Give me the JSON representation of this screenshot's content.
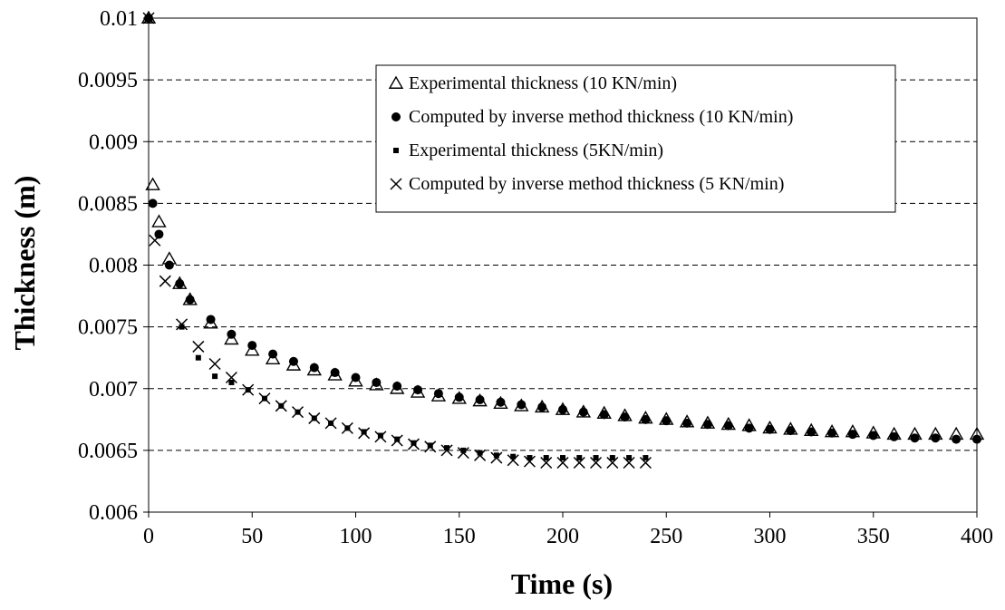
{
  "chart_data": {
    "type": "scatter",
    "xlabel": "Time (s)",
    "ylabel": "Thickness (m)",
    "xlim": [
      0,
      400
    ],
    "ylim": [
      0.006,
      0.01
    ],
    "x_ticks": [
      "0",
      "50",
      "100",
      "150",
      "200",
      "250",
      "300",
      "350",
      "400"
    ],
    "y_ticks": [
      "0.006",
      "0.0065",
      "0.007",
      "0.0075",
      "0.008",
      "0.0085",
      "0.009",
      "0.0095",
      "0.01"
    ],
    "grid": "horizontal dashed",
    "legend_position": "top-right",
    "series": [
      {
        "name": "Experimental thickness (10 KN/min)",
        "marker": "triangle-open",
        "color": "#000000",
        "points": [
          [
            0,
            0.01
          ],
          [
            2,
            0.00865
          ],
          [
            5,
            0.00835
          ],
          [
            10,
            0.00805
          ],
          [
            15,
            0.00785
          ],
          [
            20,
            0.00772
          ],
          [
            30,
            0.00753
          ],
          [
            40,
            0.0074
          ],
          [
            50,
            0.00731
          ],
          [
            60,
            0.00724
          ],
          [
            70,
            0.00719
          ],
          [
            80,
            0.00715
          ],
          [
            90,
            0.00711
          ],
          [
            100,
            0.00706
          ],
          [
            110,
            0.00703
          ],
          [
            120,
            0.007
          ],
          [
            130,
            0.00697
          ],
          [
            140,
            0.00694
          ],
          [
            150,
            0.00692
          ],
          [
            160,
            0.0069
          ],
          [
            170,
            0.00688
          ],
          [
            180,
            0.00686
          ],
          [
            190,
            0.00685
          ],
          [
            200,
            0.00683
          ],
          [
            210,
            0.00681
          ],
          [
            220,
            0.0068
          ],
          [
            230,
            0.00678
          ],
          [
            240,
            0.00676
          ],
          [
            250,
            0.00675
          ],
          [
            260,
            0.00673
          ],
          [
            270,
            0.00672
          ],
          [
            280,
            0.00671
          ],
          [
            290,
            0.0067
          ],
          [
            300,
            0.00668
          ],
          [
            310,
            0.00667
          ],
          [
            320,
            0.00666
          ],
          [
            330,
            0.00665
          ],
          [
            340,
            0.00665
          ],
          [
            350,
            0.00664
          ],
          [
            360,
            0.00663
          ],
          [
            370,
            0.00663
          ],
          [
            380,
            0.00663
          ],
          [
            390,
            0.00663
          ],
          [
            400,
            0.00663
          ]
        ]
      },
      {
        "name": "Computed by inverse method thickness (10 KN/min)",
        "marker": "circle-filled",
        "color": "#000000",
        "points": [
          [
            0,
            0.01
          ],
          [
            2,
            0.0085
          ],
          [
            5,
            0.00825
          ],
          [
            10,
            0.008
          ],
          [
            15,
            0.00785
          ],
          [
            20,
            0.00772
          ],
          [
            30,
            0.00756
          ],
          [
            40,
            0.00744
          ],
          [
            50,
            0.00735
          ],
          [
            60,
            0.00728
          ],
          [
            70,
            0.00722
          ],
          [
            80,
            0.00717
          ],
          [
            90,
            0.00713
          ],
          [
            100,
            0.00709
          ],
          [
            110,
            0.00705
          ],
          [
            120,
            0.00702
          ],
          [
            130,
            0.00699
          ],
          [
            140,
            0.00696
          ],
          [
            150,
            0.00693
          ],
          [
            160,
            0.00691
          ],
          [
            170,
            0.00689
          ],
          [
            180,
            0.00687
          ],
          [
            190,
            0.00685
          ],
          [
            200,
            0.00683
          ],
          [
            210,
            0.00681
          ],
          [
            220,
            0.00679
          ],
          [
            230,
            0.00677
          ],
          [
            240,
            0.00675
          ],
          [
            250,
            0.00674
          ],
          [
            260,
            0.00672
          ],
          [
            270,
            0.00671
          ],
          [
            280,
            0.0067
          ],
          [
            290,
            0.00668
          ],
          [
            300,
            0.00667
          ],
          [
            310,
            0.00666
          ],
          [
            320,
            0.00665
          ],
          [
            330,
            0.00664
          ],
          [
            340,
            0.00663
          ],
          [
            350,
            0.00662
          ],
          [
            360,
            0.00661
          ],
          [
            370,
            0.0066
          ],
          [
            380,
            0.0066
          ],
          [
            390,
            0.00659
          ],
          [
            400,
            0.00659
          ]
        ]
      },
      {
        "name": "Experimental thickness (5KN/min)",
        "marker": "square-filled",
        "color": "#000000",
        "points": [
          [
            0,
            0.01
          ],
          [
            16,
            0.0075
          ],
          [
            24,
            0.00725
          ],
          [
            32,
            0.0071
          ],
          [
            40,
            0.00705
          ],
          [
            48,
            0.00699
          ],
          [
            56,
            0.00692
          ],
          [
            64,
            0.00686
          ],
          [
            72,
            0.00681
          ],
          [
            80,
            0.00676
          ],
          [
            88,
            0.00672
          ],
          [
            96,
            0.00668
          ],
          [
            104,
            0.00665
          ],
          [
            112,
            0.00662
          ],
          [
            120,
            0.00659
          ],
          [
            128,
            0.00656
          ],
          [
            136,
            0.00654
          ],
          [
            144,
            0.00652
          ],
          [
            152,
            0.0065
          ],
          [
            160,
            0.00648
          ],
          [
            168,
            0.00646
          ],
          [
            176,
            0.00645
          ],
          [
            184,
            0.00644
          ],
          [
            192,
            0.00644
          ],
          [
            200,
            0.00644
          ],
          [
            208,
            0.00644
          ],
          [
            216,
            0.00644
          ],
          [
            224,
            0.00644
          ],
          [
            232,
            0.00644
          ],
          [
            240,
            0.00644
          ]
        ]
      },
      {
        "name": "Computed by inverse method thickness (5 KN/min)",
        "marker": "x",
        "color": "#000000",
        "points": [
          [
            0,
            0.01
          ],
          [
            3,
            0.0082
          ],
          [
            8,
            0.00787
          ],
          [
            16,
            0.00752
          ],
          [
            24,
            0.00734
          ],
          [
            32,
            0.0072
          ],
          [
            40,
            0.00709
          ],
          [
            48,
            0.00699
          ],
          [
            56,
            0.00692
          ],
          [
            64,
            0.00686
          ],
          [
            72,
            0.00681
          ],
          [
            80,
            0.00676
          ],
          [
            88,
            0.00672
          ],
          [
            96,
            0.00668
          ],
          [
            104,
            0.00664
          ],
          [
            112,
            0.00661
          ],
          [
            120,
            0.00658
          ],
          [
            128,
            0.00655
          ],
          [
            136,
            0.00653
          ],
          [
            144,
            0.0065
          ],
          [
            152,
            0.00648
          ],
          [
            160,
            0.00646
          ],
          [
            168,
            0.00644
          ],
          [
            176,
            0.00642
          ],
          [
            184,
            0.00641
          ],
          [
            192,
            0.0064
          ],
          [
            200,
            0.0064
          ],
          [
            208,
            0.0064
          ],
          [
            216,
            0.0064
          ],
          [
            224,
            0.0064
          ],
          [
            232,
            0.0064
          ],
          [
            240,
            0.0064
          ]
        ]
      }
    ]
  }
}
